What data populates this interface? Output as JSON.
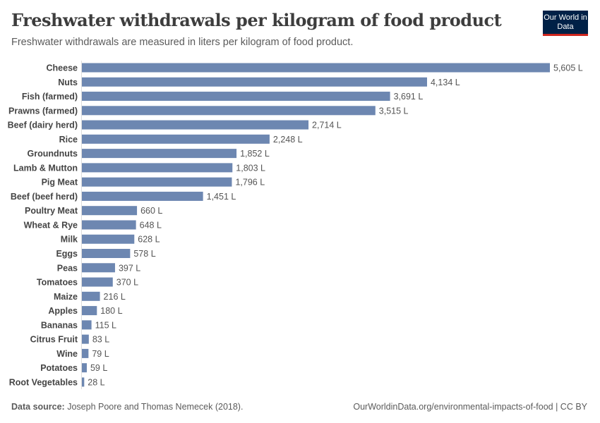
{
  "header": {
    "title": "Freshwater withdrawals per kilogram of food product",
    "subtitle": "Freshwater withdrawals are measured in liters per kilogram of food product.",
    "logo": "Our World in Data"
  },
  "footer": {
    "source_label": "Data source:",
    "source": "Joseph Poore and Thomas Nemecek (2018).",
    "url": "OurWorldinData.org/environmental-impacts-of-food | CC BY"
  },
  "chart_data": {
    "type": "bar",
    "orientation": "horizontal",
    "title": "Freshwater withdrawals per kilogram of food product",
    "unit": "L",
    "bar_color": "#6d87b1",
    "categories": [
      "Cheese",
      "Nuts",
      "Fish (farmed)",
      "Prawns (farmed)",
      "Beef (dairy herd)",
      "Rice",
      "Groundnuts",
      "Lamb & Mutton",
      "Pig Meat",
      "Beef (beef herd)",
      "Poultry Meat",
      "Wheat & Rye",
      "Milk",
      "Eggs",
      "Peas",
      "Tomatoes",
      "Maize",
      "Apples",
      "Bananas",
      "Citrus Fruit",
      "Wine",
      "Potatoes",
      "Root Vegetables"
    ],
    "values": [
      5605,
      4134,
      3691,
      3515,
      2714,
      2248,
      1852,
      1803,
      1796,
      1451,
      660,
      648,
      628,
      578,
      397,
      370,
      216,
      180,
      115,
      83,
      79,
      59,
      28
    ],
    "value_labels": [
      "5,605 L",
      "4,134 L",
      "3,691 L",
      "3,515 L",
      "2,714 L",
      "2,248 L",
      "1,852 L",
      "1,803 L",
      "1,796 L",
      "1,451 L",
      "660 L",
      "648 L",
      "628 L",
      "578 L",
      "397 L",
      "370 L",
      "216 L",
      "180 L",
      "115 L",
      "83 L",
      "79 L",
      "59 L",
      "28 L"
    ]
  }
}
